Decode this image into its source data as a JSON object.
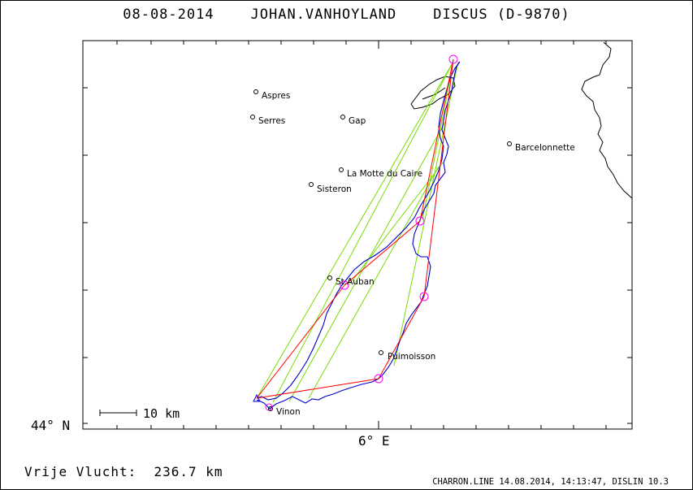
{
  "title": "08-08-2014    JOHAN.VANHOYLAND    DISCUS (D-9870)",
  "axis": {
    "lat_label": "44° N",
    "lon_label": "6° E"
  },
  "scale_label": "10 km",
  "distance_label": "Vrije Vlucht:  236.7 km",
  "footer": "CHARRON.LINE 14.08.2014, 14:13:47, DISLIN 10.3",
  "places": [
    {
      "name": "Aspres"
    },
    {
      "name": "Serres"
    },
    {
      "name": "Gap"
    },
    {
      "name": "Barcelonnette"
    },
    {
      "name": "La Motte du Caire"
    },
    {
      "name": "Sisteron"
    },
    {
      "name": "St.Auban"
    },
    {
      "name": "Puimoisson"
    },
    {
      "name": "Vinon"
    }
  ],
  "colors": {
    "track": "#0000cc",
    "triangle": "#ff0000",
    "legs": "#77dd00",
    "turnpoints": "#ff00ff",
    "coast": "#000000"
  }
}
